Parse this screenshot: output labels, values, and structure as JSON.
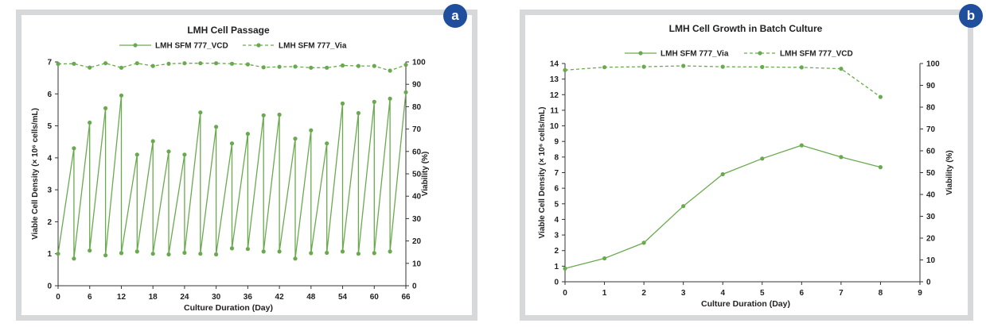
{
  "panels": {
    "a": {
      "badge": "a"
    },
    "b": {
      "badge": "b"
    }
  },
  "chart_data": [
    {
      "type": "line",
      "title": "LMH Cell Passage",
      "xlabel": "Culture Duration (Day)",
      "ylabel": "Viable Cell Density  (× 10⁶ cells/mL)",
      "y2label": "Viability (%)",
      "xlim": [
        0,
        66
      ],
      "xticks": [
        "0",
        "6",
        "12",
        "18",
        "24",
        "30",
        "36",
        "42",
        "48",
        "54",
        "60",
        "66"
      ],
      "ylim": [
        0,
        7
      ],
      "yticks": [
        "0",
        "1",
        "2",
        "3",
        "4",
        "5",
        "6",
        "7"
      ],
      "y2lim": [
        0,
        100
      ],
      "y2ticks": [
        "0",
        "10",
        "20",
        "30",
        "40",
        "50",
        "60",
        "70",
        "80",
        "90",
        "100"
      ],
      "color": "#6aaa4f",
      "legend_position": "top",
      "series": [
        {
          "name": "LMH SFM 777_VCD",
          "axis": "left",
          "style": "solid",
          "x": [
            0,
            3,
            3,
            6,
            6,
            9,
            9,
            12,
            12,
            15,
            15,
            18,
            18,
            21,
            21,
            24,
            24,
            27,
            27,
            30,
            30,
            33,
            33,
            36,
            36,
            39,
            39,
            42,
            42,
            45,
            45,
            48,
            48,
            51,
            51,
            54,
            54,
            57,
            57,
            60,
            60,
            63,
            63,
            66
          ],
          "y": [
            1.0,
            4.3,
            0.85,
            5.1,
            1.1,
            5.55,
            0.95,
            5.95,
            1.02,
            4.1,
            1.07,
            4.52,
            1.0,
            4.2,
            0.98,
            4.1,
            1.03,
            5.42,
            1.0,
            4.97,
            0.98,
            4.45,
            1.17,
            4.75,
            1.15,
            5.33,
            1.07,
            5.35,
            1.07,
            4.6,
            0.85,
            4.86,
            1.02,
            4.45,
            1.03,
            5.7,
            1.07,
            5.4,
            1.0,
            5.75,
            1.02,
            5.85,
            1.07,
            6.05
          ]
        },
        {
          "name": "LMH SFM 777_Via",
          "axis": "right",
          "style": "dashed",
          "x": [
            0,
            3,
            6,
            9,
            12,
            15,
            18,
            21,
            24,
            27,
            30,
            33,
            36,
            39,
            42,
            45,
            48,
            51,
            54,
            57,
            60,
            63,
            66
          ],
          "y": [
            99.1,
            99.2,
            97.5,
            99.4,
            97.4,
            99.4,
            98.2,
            99.2,
            99.4,
            99.4,
            99.4,
            99.2,
            98.9,
            97.6,
            97.8,
            97.9,
            97.4,
            97.4,
            98.4,
            98.2,
            98.2,
            96.1,
            98.7
          ]
        }
      ]
    },
    {
      "type": "line",
      "title": "LMH Cell Growth in Batch Culture",
      "xlabel": "Culture Duration (Day)",
      "ylabel": "Viable Cell Density (× 10⁶ cells/mL)",
      "y2label": "Viability (%)",
      "xlim": [
        0,
        9
      ],
      "xticks": [
        "0",
        "1",
        "2",
        "3",
        "4",
        "5",
        "6",
        "7",
        "8",
        "9"
      ],
      "ylim": [
        0,
        14
      ],
      "yticks": [
        "0",
        "1",
        "2",
        "3",
        "4",
        "5",
        "6",
        "7",
        "8",
        "9",
        "10",
        "11",
        "12",
        "13",
        "14"
      ],
      "y2lim": [
        0,
        100
      ],
      "y2ticks": [
        "0",
        "10",
        "20",
        "30",
        "40",
        "50",
        "60",
        "70",
        "80",
        "90",
        "100"
      ],
      "color": "#6aaa4f",
      "legend_position": "top",
      "series": [
        {
          "name": "LMH SFM 777_Via",
          "axis": "left",
          "style": "solid",
          "x": [
            0,
            1,
            2,
            3,
            4,
            5,
            6,
            7,
            8
          ],
          "y": [
            0.85,
            1.5,
            2.5,
            4.85,
            6.9,
            7.9,
            8.75,
            8.0,
            7.35
          ]
        },
        {
          "name": "LMH SFM 777_VCD",
          "axis": "right",
          "style": "dashed",
          "x": [
            0,
            1,
            2,
            3,
            4,
            5,
            6,
            7,
            8
          ],
          "y": [
            97.0,
            98.3,
            98.5,
            98.9,
            98.5,
            98.4,
            98.2,
            97.6,
            84.7
          ]
        }
      ]
    }
  ]
}
